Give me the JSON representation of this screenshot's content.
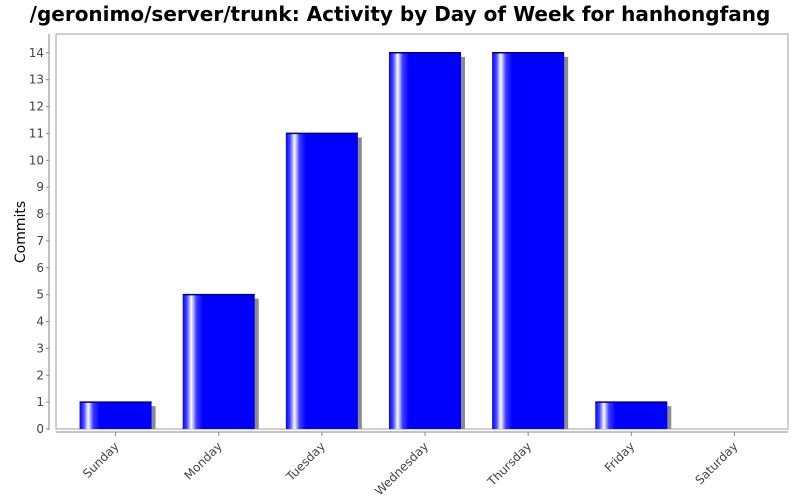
{
  "chart_data": {
    "type": "bar",
    "title": "/geronimo/server/trunk: Activity by Day of Week for hanhongfang",
    "xlabel": "",
    "ylabel": "Commits",
    "categories": [
      "Sunday",
      "Monday",
      "Tuesday",
      "Wednesday",
      "Thursday",
      "Friday",
      "Saturday"
    ],
    "values": [
      1,
      5,
      11,
      14,
      14,
      1,
      0
    ],
    "ylim": [
      0,
      14.7
    ],
    "yticks": [
      "0",
      "1",
      "2",
      "3",
      "4",
      "5",
      "6",
      "7",
      "8",
      "9",
      "10",
      "11",
      "12",
      "13",
      "14"
    ],
    "grid": false,
    "legend": "none",
    "bar_color": "#0000ff"
  }
}
